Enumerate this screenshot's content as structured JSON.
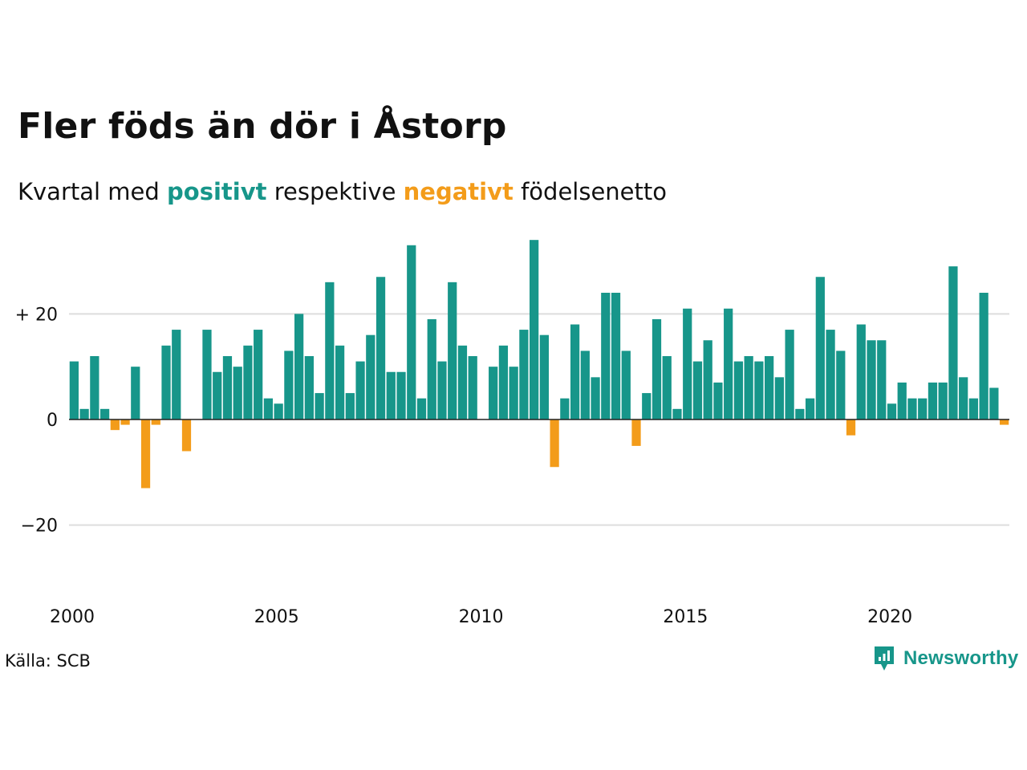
{
  "title": "Fler föds än dör i Åstorp",
  "subtitle": {
    "prefix": "Kvartal med",
    "positive_word": "positivt",
    "middle": "respektive",
    "negative_word": "negativt",
    "suffix": "födelsenetto"
  },
  "source": "Källa: SCB",
  "brand": "Newsworthy",
  "colors": {
    "positive": "#17968a",
    "negative": "#f39c1a",
    "grid": "#dddddd"
  },
  "chart_data": {
    "type": "bar",
    "x_start": 2000,
    "x_end": 2023,
    "periods_per_year": 4,
    "ylim": [
      -36,
      36
    ],
    "yticks": [
      20,
      0,
      -20
    ],
    "ytick_labels": [
      "+ 20",
      "0",
      "−20"
    ],
    "xticks": [
      2000,
      2005,
      2010,
      2015,
      2020
    ],
    "xtick_labels": [
      "2000",
      "2005",
      "2010",
      "2015",
      "2020"
    ],
    "values": [
      11,
      2,
      12,
      2,
      -2,
      -1,
      10,
      -13,
      -1,
      14,
      17,
      -6,
      0,
      17,
      9,
      12,
      10,
      14,
      17,
      4,
      3,
      13,
      20,
      12,
      5,
      26,
      14,
      5,
      11,
      16,
      27,
      9,
      9,
      33,
      4,
      19,
      11,
      26,
      14,
      12,
      0,
      10,
      14,
      10,
      17,
      34,
      16,
      -9,
      4,
      18,
      13,
      8,
      24,
      24,
      13,
      -5,
      5,
      19,
      12,
      2,
      21,
      11,
      15,
      7,
      21,
      11,
      12,
      11,
      12,
      8,
      17,
      2,
      4,
      27,
      17,
      13,
      -3,
      18,
      15,
      15,
      3,
      7,
      4,
      4,
      7,
      7,
      29,
      8,
      4,
      24,
      6,
      -1
    ]
  }
}
